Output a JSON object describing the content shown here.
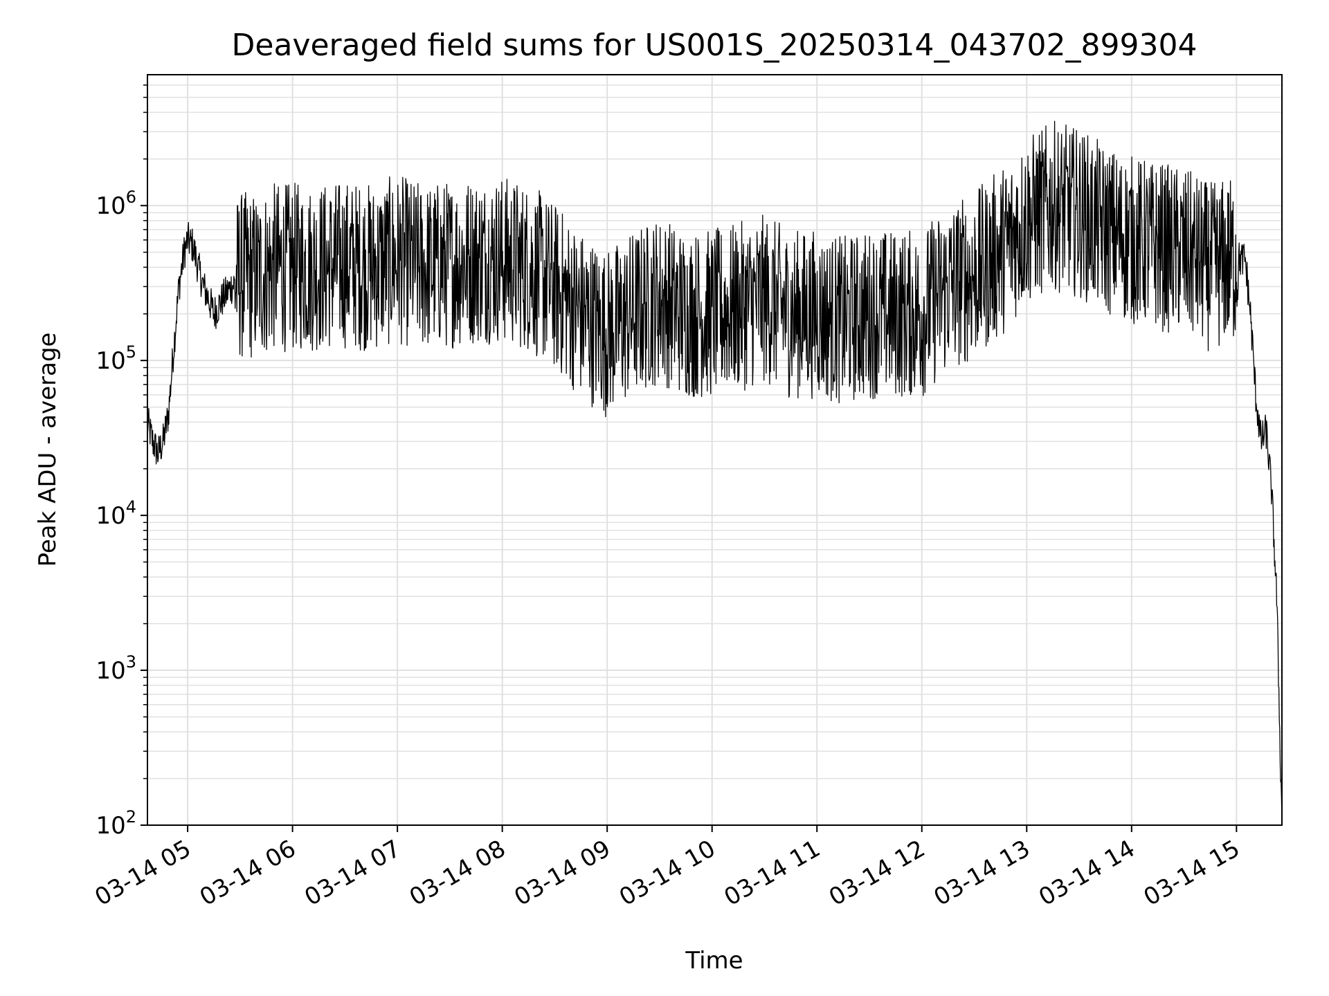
{
  "chart_data": {
    "type": "line",
    "title": "Deaveraged field sums for US001S_20250314_043702_899304",
    "xlabel": "Time",
    "ylabel": "Peak ADU - average",
    "y_scale": "log",
    "ylim": [
      100,
      7000000
    ],
    "xlim": [
      "2025-03-14 04:37",
      "2025-03-14 15:26"
    ],
    "grid": true,
    "line_color": "#000000",
    "grid_color": "#e0e0e0",
    "x_ticks": [
      {
        "value": "2025-03-14 05:00",
        "label": "03-14 05"
      },
      {
        "value": "2025-03-14 06:00",
        "label": "03-14 06"
      },
      {
        "value": "2025-03-14 07:00",
        "label": "03-14 07"
      },
      {
        "value": "2025-03-14 08:00",
        "label": "03-14 08"
      },
      {
        "value": "2025-03-14 09:00",
        "label": "03-14 09"
      },
      {
        "value": "2025-03-14 10:00",
        "label": "03-14 10"
      },
      {
        "value": "2025-03-14 11:00",
        "label": "03-14 11"
      },
      {
        "value": "2025-03-14 12:00",
        "label": "03-14 12"
      },
      {
        "value": "2025-03-14 13:00",
        "label": "03-14 13"
      },
      {
        "value": "2025-03-14 14:00",
        "label": "03-14 14"
      },
      {
        "value": "2025-03-14 15:00",
        "label": "03-14 15"
      }
    ],
    "y_ticks": [
      {
        "value": 100,
        "base": "10",
        "exp": "2"
      },
      {
        "value": 1000,
        "base": "10",
        "exp": "3"
      },
      {
        "value": 10000,
        "base": "10",
        "exp": "4"
      },
      {
        "value": 100000,
        "base": "10",
        "exp": "5"
      },
      {
        "value": 1000000,
        "base": "10",
        "exp": "6"
      }
    ],
    "series": [
      {
        "x": [
          "2025-03-14 04:37",
          "2025-03-14 04:40",
          "2025-03-14 04:43",
          "2025-03-14 04:46",
          "2025-03-14 04:49",
          "2025-03-14 04:52",
          "2025-03-14 04:55",
          "2025-03-14 04:58",
          "2025-03-14 05:00",
          "2025-03-14 05:03",
          "2025-03-14 05:06",
          "2025-03-14 05:09",
          "2025-03-14 05:12",
          "2025-03-14 05:15",
          "2025-03-14 05:20",
          "2025-03-14 05:25",
          "2025-03-14 05:30",
          "2025-03-14 05:40",
          "2025-03-14 05:50",
          "2025-03-14 06:00",
          "2025-03-14 06:15",
          "2025-03-14 06:30",
          "2025-03-14 06:45",
          "2025-03-14 07:00",
          "2025-03-14 07:15",
          "2025-03-14 07:30",
          "2025-03-14 07:45",
          "2025-03-14 08:00",
          "2025-03-14 08:15",
          "2025-03-14 08:30",
          "2025-03-14 08:45",
          "2025-03-14 09:00",
          "2025-03-14 09:15",
          "2025-03-14 09:30",
          "2025-03-14 09:45",
          "2025-03-14 10:00",
          "2025-03-14 10:15",
          "2025-03-14 10:30",
          "2025-03-14 10:45",
          "2025-03-14 11:00",
          "2025-03-14 11:15",
          "2025-03-14 11:30",
          "2025-03-14 11:45",
          "2025-03-14 12:00",
          "2025-03-14 12:15",
          "2025-03-14 12:30",
          "2025-03-14 12:45",
          "2025-03-14 13:00",
          "2025-03-14 13:15",
          "2025-03-14 13:30",
          "2025-03-14 13:45",
          "2025-03-14 14:00",
          "2025-03-14 14:15",
          "2025-03-14 14:30",
          "2025-03-14 14:45",
          "2025-03-14 15:00",
          "2025-03-14 15:05",
          "2025-03-14 15:08",
          "2025-03-14 15:11",
          "2025-03-14 15:14",
          "2025-03-14 15:17",
          "2025-03-14 15:20",
          "2025-03-14 15:23",
          "2025-03-14 15:26"
        ],
        "y": [
          40000,
          30000,
          25000,
          30000,
          45000,
          120000,
          300000,
          500000,
          600000,
          550000,
          400000,
          300000,
          250000,
          200000,
          250000,
          300000,
          350000,
          350000,
          400000,
          400000,
          400000,
          420000,
          400000,
          450000,
          400000,
          420000,
          450000,
          450000,
          400000,
          300000,
          200000,
          150000,
          200000,
          250000,
          200000,
          200000,
          220000,
          250000,
          200000,
          200000,
          180000,
          200000,
          200000,
          200000,
          300000,
          350000,
          500000,
          800000,
          1000000,
          900000,
          700000,
          600000,
          550000,
          500000,
          400000,
          450000,
          450000,
          200000,
          60000,
          30000,
          35000,
          15000,
          3000,
          100
        ]
      }
    ]
  }
}
